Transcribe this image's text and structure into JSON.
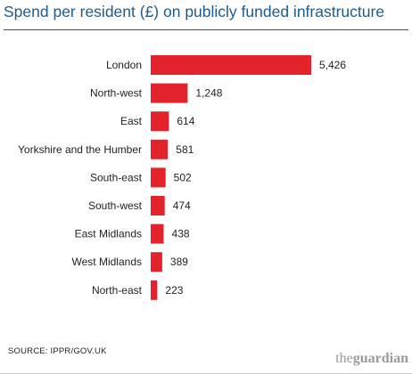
{
  "title": "Spend per resident (£) on publicly funded infrastructure",
  "source": "SOURCE: IPPR/GOV.UK",
  "logo": {
    "the": "the",
    "name": "guardian"
  },
  "colors": {
    "bar": "#e3232c",
    "title": "#1f5b8a"
  },
  "chart_data": {
    "type": "bar",
    "orientation": "horizontal",
    "categories": [
      "London",
      "North-west",
      "East",
      "Yorkshire and the Humber",
      "South-east",
      "South-west",
      "East Midlands",
      "West Midlands",
      "North-east"
    ],
    "values": [
      5426,
      1248,
      614,
      581,
      502,
      474,
      438,
      389,
      223
    ],
    "value_labels": [
      "5,426",
      "1,248",
      "614",
      "581",
      "502",
      "474",
      "438",
      "389",
      "223"
    ],
    "title": "Spend per resident (£) on publicly funded infrastructure",
    "xlabel": "",
    "ylabel": "",
    "grid": false
  }
}
